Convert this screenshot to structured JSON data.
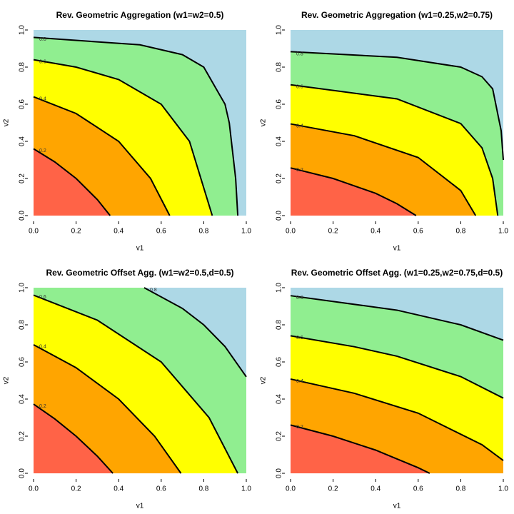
{
  "chart_data": [
    {
      "type": "filled_contour",
      "title": "Rev. Geometric Aggregation (w1=w2=0.5)",
      "xlabel": "v1",
      "ylabel": "v2",
      "xlim": [
        0,
        1
      ],
      "ylim": [
        0,
        1
      ],
      "xticks": [
        {
          "value": 0,
          "label": "0.0"
        },
        0.2,
        0.4,
        0.6,
        0.8,
        {
          "value": 1,
          "label": "1.0"
        }
      ],
      "yticks": [
        {
          "value": 0,
          "label": "0.0"
        },
        0.2,
        0.4,
        0.6,
        0.8,
        {
          "value": 1,
          "label": "1.0"
        }
      ],
      "fill_colors": [
        "#ff6347",
        "#ffa500",
        "#ffff00",
        "#90ee90",
        "#add8e6"
      ],
      "line_color": "#000000",
      "contours": [
        {
          "level": 0.2,
          "x": [
            0,
            0.1,
            0.2,
            0.3,
            0.36
          ],
          "y": [
            0.36,
            0.289,
            0.2,
            0.086,
            0
          ]
        },
        {
          "level": 0.4,
          "x": [
            0,
            0.2,
            0.4,
            0.55,
            0.64
          ],
          "y": [
            0.64,
            0.55,
            0.4,
            0.2,
            0
          ]
        },
        {
          "level": 0.6,
          "x": [
            0,
            0.2,
            0.4,
            0.6,
            0.733,
            0.84
          ],
          "y": [
            0.84,
            0.8,
            0.733,
            0.6,
            0.4,
            0
          ]
        },
        {
          "level": 0.8,
          "x": [
            0,
            0.5,
            0.7,
            0.8,
            0.9,
            0.92,
            0.95,
            0.96
          ],
          "y": [
            0.96,
            0.92,
            0.867,
            0.8,
            0.6,
            0.5,
            0.2,
            0
          ]
        }
      ]
    },
    {
      "type": "filled_contour",
      "title": "Rev. Geometric Aggregation (w1=0.25,w2=0.75)",
      "xlabel": "v1",
      "ylabel": "v2",
      "xlim": [
        0,
        1
      ],
      "ylim": [
        0,
        1
      ],
      "xticks": [
        {
          "value": 0,
          "label": "0.0"
        },
        0.2,
        0.4,
        0.6,
        0.8,
        {
          "value": 1,
          "label": "1.0"
        }
      ],
      "yticks": [
        {
          "value": 0,
          "label": "0.0"
        },
        0.2,
        0.4,
        0.6,
        0.8,
        {
          "value": 1,
          "label": "1.0"
        }
      ],
      "fill_colors": [
        "#ff6347",
        "#ffa500",
        "#ffff00",
        "#90ee90",
        "#add8e6"
      ],
      "line_color": "#000000",
      "contours": [
        {
          "level": 0.2,
          "x": [
            0,
            0.2,
            0.4,
            0.5,
            0.59
          ],
          "y": [
            0.257,
            0.2,
            0.12,
            0.064,
            0
          ]
        },
        {
          "level": 0.4,
          "x": [
            0,
            0.3,
            0.6,
            0.8,
            0.87
          ],
          "y": [
            0.494,
            0.43,
            0.313,
            0.135,
            0
          ]
        },
        {
          "level": 0.6,
          "x": [
            0,
            0.5,
            0.8,
            0.9,
            0.95,
            0.974
          ],
          "y": [
            0.705,
            0.629,
            0.496,
            0.365,
            0.2,
            0
          ]
        },
        {
          "level": 0.8,
          "x": [
            0,
            0.5,
            0.8,
            0.9,
            0.95,
            0.99,
            1
          ],
          "y": [
            0.883,
            0.853,
            0.8,
            0.748,
            0.683,
            0.457,
            0.3
          ]
        }
      ]
    },
    {
      "type": "filled_contour",
      "title": "Rev. Geometric Offset Agg. (w1=w2=0.5,d=0.5)",
      "xlabel": "v1",
      "ylabel": "v2",
      "xlim": [
        0,
        1
      ],
      "ylim": [
        0,
        1
      ],
      "xticks": [
        {
          "value": 0,
          "label": "0.0"
        },
        0.2,
        0.4,
        0.6,
        0.8,
        {
          "value": 1,
          "label": "1.0"
        }
      ],
      "yticks": [
        {
          "value": 0,
          "label": "0.0"
        },
        0.2,
        0.4,
        0.6,
        0.8,
        {
          "value": 1,
          "label": "1.0"
        }
      ],
      "fill_colors": [
        "#ff6347",
        "#ffa500",
        "#ffff00",
        "#90ee90",
        "#add8e6"
      ],
      "line_color": "#000000",
      "contours": [
        {
          "level": 0.2,
          "x": [
            0,
            0.1,
            0.2,
            0.3,
            0.373
          ],
          "y": [
            0.373,
            0.293,
            0.2,
            0.092,
            0
          ]
        },
        {
          "level": 0.4,
          "x": [
            0,
            0.2,
            0.4,
            0.569,
            0.693
          ],
          "y": [
            0.693,
            0.569,
            0.4,
            0.2,
            0
          ]
        },
        {
          "level": 0.6,
          "x": [
            0,
            0.3,
            0.6,
            0.825,
            0.96
          ],
          "y": [
            0.96,
            0.825,
            0.6,
            0.3,
            0
          ]
        },
        {
          "level": 0.8,
          "x": [
            0.52,
            0.7,
            0.8,
            0.9,
            1
          ],
          "y": [
            1,
            0.888,
            0.8,
            0.683,
            0.52
          ]
        }
      ]
    },
    {
      "type": "filled_contour",
      "title": "Rev. Geometric Offset Agg. (w1=0.25,w2=0.75,d=0.5)",
      "xlabel": "v1",
      "ylabel": "v2",
      "xlim": [
        0,
        1
      ],
      "ylim": [
        0,
        1
      ],
      "xticks": [
        {
          "value": 0,
          "label": "0.0"
        },
        0.2,
        0.4,
        0.6,
        0.8,
        {
          "value": 1,
          "label": "1.0"
        }
      ],
      "yticks": [
        {
          "value": 0,
          "label": "0.0"
        },
        0.2,
        0.4,
        0.6,
        0.8,
        {
          "value": 1,
          "label": "1.0"
        }
      ],
      "fill_colors": [
        "#ff6347",
        "#ffa500",
        "#ffff00",
        "#90ee90",
        "#add8e6"
      ],
      "line_color": "#000000",
      "contours": [
        {
          "level": 0.2,
          "x": [
            0,
            0.2,
            0.4,
            0.6,
            0.654
          ],
          "y": [
            0.26,
            0.2,
            0.125,
            0.03,
            0
          ]
        },
        {
          "level": 0.4,
          "x": [
            0,
            0.3,
            0.6,
            0.9,
            1
          ],
          "y": [
            0.508,
            0.431,
            0.324,
            0.154,
            0.069
          ]
        },
        {
          "level": 0.6,
          "x": [
            0,
            0.3,
            0.5,
            0.8,
            1
          ],
          "y": [
            0.741,
            0.682,
            0.631,
            0.521,
            0.405
          ]
        },
        {
          "level": 0.8,
          "x": [
            0,
            0.5,
            0.8,
            1
          ],
          "y": [
            0.957,
            0.879,
            0.8,
            0.717
          ]
        }
      ]
    }
  ]
}
